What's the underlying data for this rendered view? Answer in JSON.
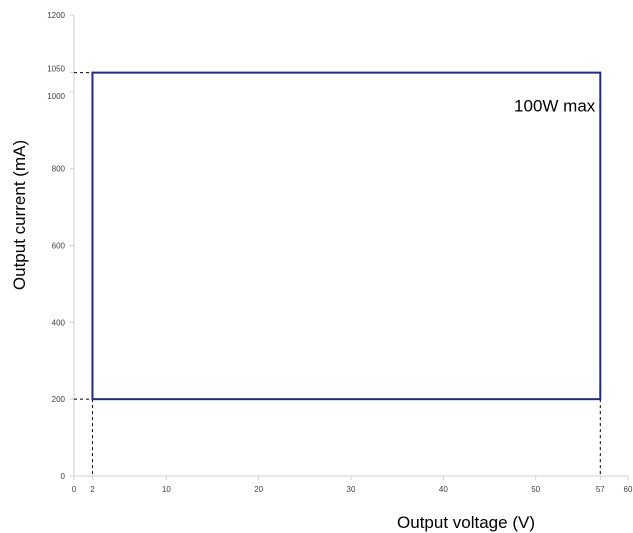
{
  "chart_data": {
    "type": "area",
    "title": "",
    "xlabel": "Output voltage (V)",
    "ylabel": "Output current (mA)",
    "xlim": [
      0,
      60
    ],
    "ylim": [
      0,
      1200
    ],
    "x_ticks": [
      0,
      2,
      10,
      20,
      30,
      40,
      50,
      57,
      60
    ],
    "y_ticks": [
      0,
      200,
      400,
      600,
      800,
      1000,
      1050,
      1200
    ],
    "grid": false,
    "legend": "none",
    "operating_area": {
      "x_min": 2,
      "x_max": 57,
      "y_min": 200,
      "y_max": 1050,
      "color": "#1f2a8c"
    },
    "guide_lines": {
      "x": [
        2,
        57
      ],
      "y": [
        200,
        1050
      ],
      "style": "dashed",
      "color": "#000000"
    },
    "annotations": [
      {
        "text": "100W max",
        "x": 57,
        "y": 1050,
        "anchor": "top-right-inside"
      }
    ],
    "axis_color": "#d0d0d0"
  }
}
